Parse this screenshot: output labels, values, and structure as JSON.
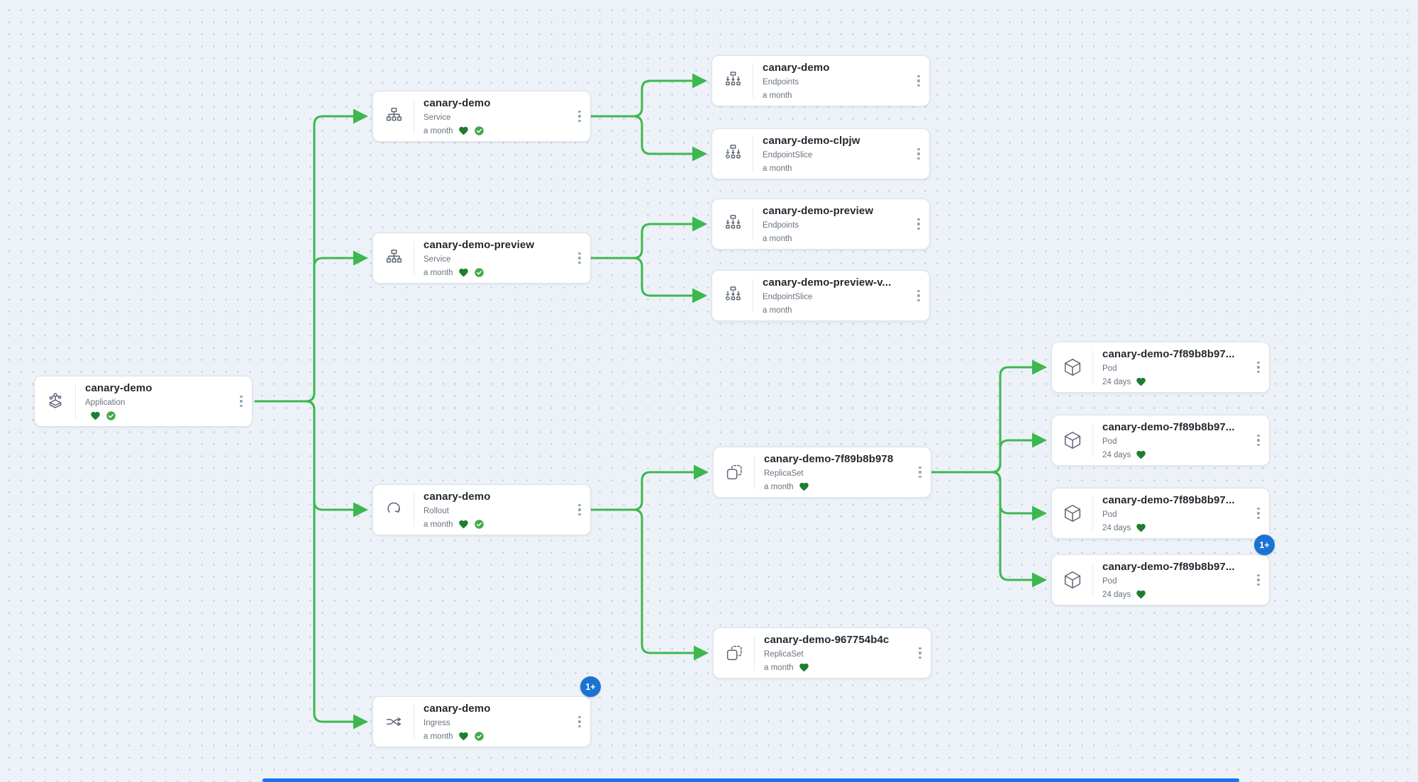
{
  "view": {
    "name": "application-resource-tree"
  },
  "badge": {
    "overflow_label": "1+"
  },
  "colors": {
    "edge_green": "#3cb84e",
    "healthy_heart_green": "#1e7e2e",
    "synced_check_green": "#43a94a",
    "overflow_badge_blue": "#1a73d2",
    "canvas_background": "#edf2f8"
  },
  "nodes": [
    {
      "title": "canary-demo",
      "kind": "Application",
      "age": ""
    },
    {
      "title": "canary-demo",
      "kind": "Service",
      "age": "a month"
    },
    {
      "title": "canary-demo",
      "kind": "Endpoints",
      "age": "a month"
    },
    {
      "title": "canary-demo-clpjw",
      "kind": "EndpointSlice",
      "age": "a month"
    },
    {
      "title": "canary-demo-preview",
      "kind": "Service",
      "age": "a month"
    },
    {
      "title": "canary-demo-preview",
      "kind": "Endpoints",
      "age": "a month"
    },
    {
      "title": "canary-demo-preview-v...",
      "kind": "EndpointSlice",
      "age": "a month"
    },
    {
      "title": "canary-demo",
      "kind": "Rollout",
      "age": "a month"
    },
    {
      "title": "canary-demo-7f89b8b978",
      "kind": "ReplicaSet",
      "age": "a month"
    },
    {
      "title": "canary-demo-7f89b8b97...",
      "kind": "Pod",
      "age": "24 days"
    },
    {
      "title": "canary-demo-7f89b8b97...",
      "kind": "Pod",
      "age": "24 days"
    },
    {
      "title": "canary-demo-7f89b8b97...",
      "kind": "Pod",
      "age": "24 days"
    },
    {
      "title": "canary-demo-7f89b8b97...",
      "kind": "Pod",
      "age": "24 days"
    },
    {
      "title": "canary-demo-967754b4c",
      "kind": "ReplicaSet",
      "age": "a month"
    },
    {
      "title": "canary-demo",
      "kind": "Ingress",
      "age": "a month"
    }
  ]
}
